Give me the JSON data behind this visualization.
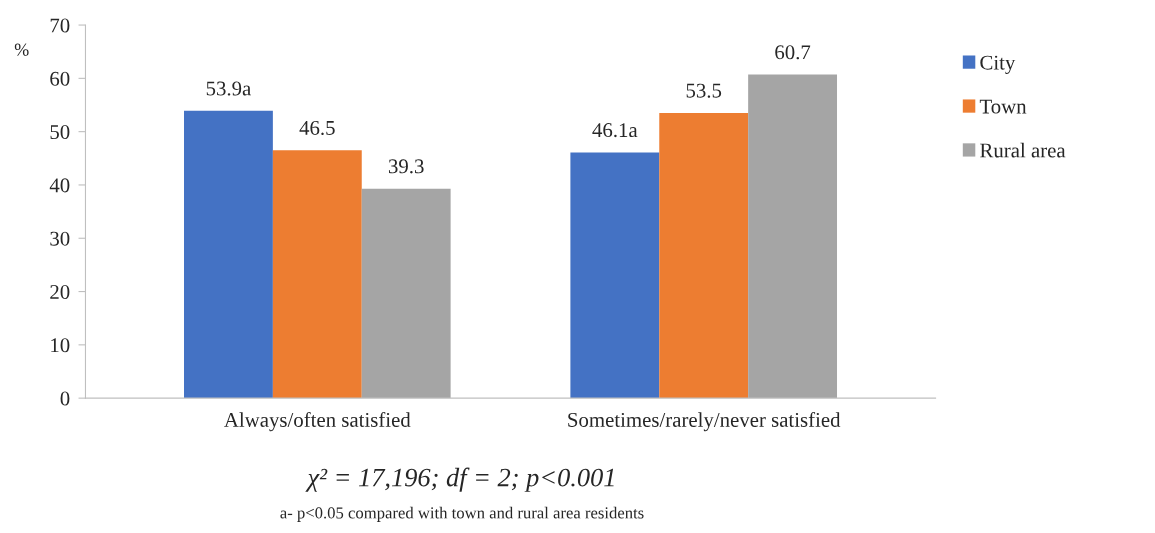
{
  "chart_data": {
    "type": "bar",
    "ylabel": "%",
    "categories": [
      "Always/often satisfied",
      "Sometimes/rarely/never satisfied"
    ],
    "series": [
      {
        "name": "City",
        "color": "#4472c4",
        "values": [
          53.9,
          46.1
        ],
        "value_labels": [
          "53.9a",
          "46.1a"
        ]
      },
      {
        "name": "Town",
        "color": "#ed7d31",
        "values": [
          46.5,
          53.5
        ],
        "value_labels": [
          "46.5",
          "53.5"
        ]
      },
      {
        "name": "Rural area",
        "color": "#a5a5a5",
        "values": [
          39.3,
          60.7
        ],
        "value_labels": [
          "39.3",
          "60.7"
        ]
      }
    ],
    "ylim": [
      0,
      70
    ],
    "yticks": [
      0,
      10,
      20,
      30,
      40,
      50,
      60,
      70
    ],
    "grid": false,
    "legend": "top right",
    "annotations": [
      "χ² = 17,196; df = 2; p<0.001",
      "a- p<0.05 compared with town and rural area residents"
    ]
  }
}
